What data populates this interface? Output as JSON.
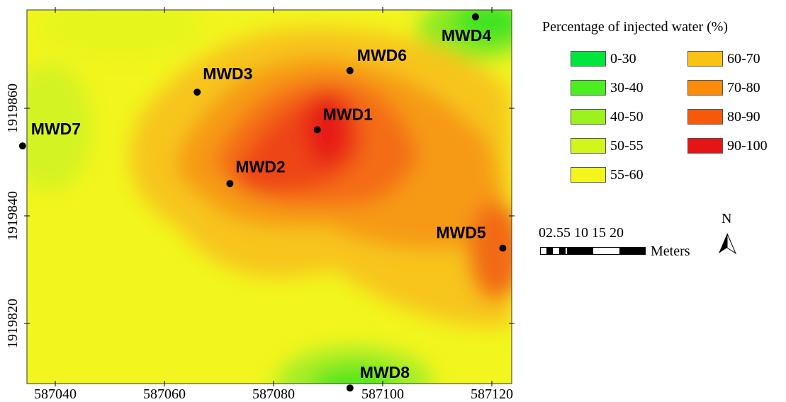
{
  "map": {
    "x_ticks": [
      "587040",
      "587060",
      "587080",
      "587100",
      "587120"
    ],
    "y_ticks": [
      "1919860",
      "1919840",
      "1919820"
    ],
    "wells": [
      {
        "id": "MWD1",
        "easting": 587088,
        "northing": 1919856,
        "label": "MWD1"
      },
      {
        "id": "MWD2",
        "easting": 587072,
        "northing": 1919846,
        "label": "MWD2"
      },
      {
        "id": "MWD3",
        "easting": 587066,
        "northing": 1919863,
        "label": "MWD3"
      },
      {
        "id": "MWD4",
        "easting": 587117,
        "northing": 1919877,
        "label": "MWD4"
      },
      {
        "id": "MWD5",
        "easting": 587122,
        "northing": 1919834,
        "label": "MWD5"
      },
      {
        "id": "MWD6",
        "easting": 587094,
        "northing": 1919867,
        "label": "MWD6"
      },
      {
        "id": "MWD7",
        "easting": 587034,
        "northing": 1919853,
        "label": "MWD7"
      },
      {
        "id": "MWD8",
        "easting": 587094,
        "northing": 1919808,
        "label": "MWD8"
      }
    ]
  },
  "legend": {
    "title": "Percentage of injected water (%)",
    "classes": [
      {
        "label": "0-30",
        "color": "#00e63c"
      },
      {
        "label": "30-40",
        "color": "#4bef21"
      },
      {
        "label": "40-50",
        "color": "#9cf21e"
      },
      {
        "label": "50-55",
        "color": "#d2f51e"
      },
      {
        "label": "55-60",
        "color": "#f5f51e"
      },
      {
        "label": "60-70",
        "color": "#fac314"
      },
      {
        "label": "70-80",
        "color": "#fa8c0a"
      },
      {
        "label": "80-90",
        "color": "#f55a0a"
      },
      {
        "label": "90-100",
        "color": "#e61414"
      }
    ]
  },
  "scalebar": {
    "labels": "02.55   10   15   20",
    "units": "Meters"
  },
  "north_arrow": {
    "label": "N"
  }
}
